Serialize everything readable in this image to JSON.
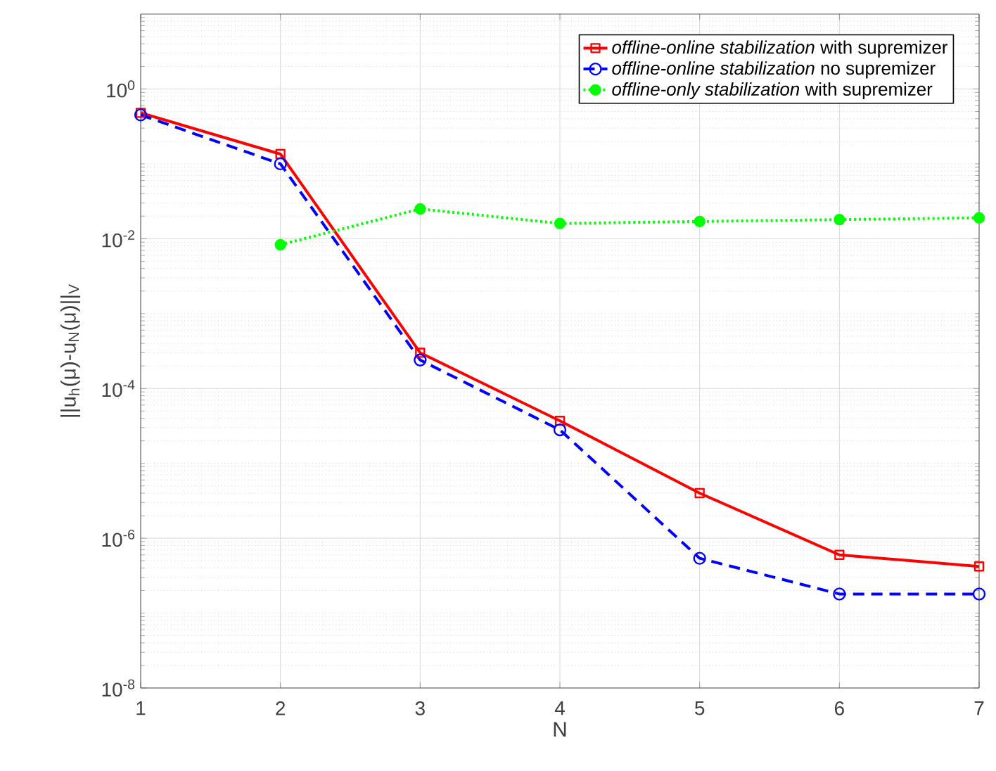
{
  "chart_data": {
    "type": "line",
    "xlabel": "N",
    "ylabel": "||u$_{h}$(μ)-u$_{N}$(μ)||$_{V}$",
    "x": [
      1,
      2,
      3,
      4,
      5,
      6,
      7
    ],
    "series": [
      {
        "name": "*offline-online stabilization* with supremizer",
        "color": "#ff0000",
        "marker": "square",
        "line_style": "solid",
        "values": [
          0.48,
          0.135,
          0.0003,
          3.7e-05,
          4e-06,
          6e-07,
          4.2e-07
        ]
      },
      {
        "name": "*offline-online stabilization* no supremizer",
        "color": "#0000ff",
        "marker": "circle",
        "line_style": "dashed",
        "values": [
          0.45,
          0.1,
          0.00024,
          2.8e-05,
          5.4e-07,
          1.8e-07,
          1.8e-07
        ]
      },
      {
        "name": "*offline-only stabilization* with supremizer",
        "color": "#00ff00",
        "marker": "dot",
        "line_style": "dotted",
        "values": [
          null,
          0.0083,
          0.025,
          0.016,
          0.017,
          0.018,
          0.019
        ]
      }
    ],
    "xlim": [
      1,
      7
    ],
    "xticks": [
      1,
      2,
      3,
      4,
      5,
      6,
      7
    ],
    "ylim": [
      1e-08,
      10
    ],
    "yticks": [
      {
        "value": 1e-08,
        "label": "10$^{-8}$"
      },
      {
        "value": 1e-06,
        "label": "10$^{-6}$"
      },
      {
        "value": 0.0001,
        "label": "10$^{-4}$"
      },
      {
        "value": 0.01,
        "label": "10$^{-2}$"
      },
      {
        "value": 1,
        "label": "10$^{0}$"
      }
    ],
    "log": "y",
    "grid": true,
    "legend": "top right"
  }
}
